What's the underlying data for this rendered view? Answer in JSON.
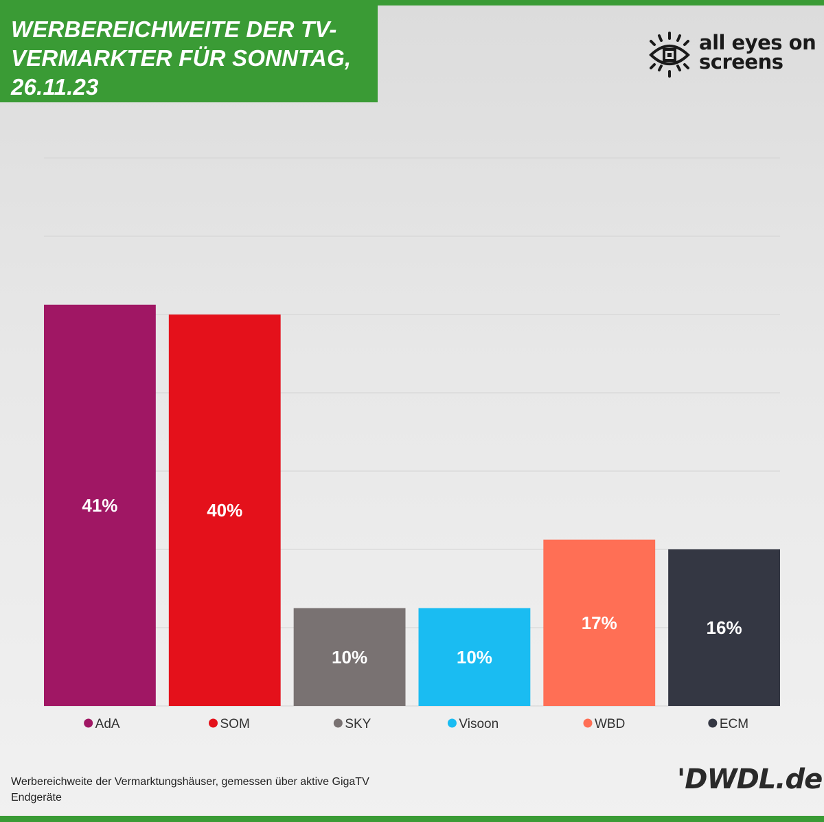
{
  "header": {
    "title": "WERBEREICHWEITE DER TV-VERMARKTER FÜR SONNTAG, 26.11.23",
    "title_lines": [
      "WERBEREICHWEITE DER TV-",
      "VERMARKTER FÜR SONNTAG,",
      "26.11.23"
    ]
  },
  "brand": {
    "line1": "all eyes on",
    "line2": "screens"
  },
  "chart_data": {
    "type": "bar",
    "title": "WERBEREICHWEITE DER TV-VERMARKTER FÜR SONNTAG, 26.11.23",
    "categories": [
      "AdA",
      "SOM",
      "SKY",
      "Visoon",
      "WBD",
      "ECM"
    ],
    "values": [
      41,
      40,
      10,
      10,
      17,
      16
    ],
    "labels": [
      "41%",
      "40%",
      "10%",
      "10%",
      "17%",
      "16%"
    ],
    "colors": [
      "#a01764",
      "#e4111b",
      "#797272",
      "#1abcf2",
      "#ff6f55",
      "#343743"
    ],
    "label_colors": [
      "#ffffff",
      "#ffffff",
      "#ffffff",
      "#ffffff",
      "#ffffff",
      "#ffffff"
    ],
    "ylim": [
      0,
      56
    ],
    "grid": true,
    "legend_position": "bottom",
    "xlabel": "",
    "ylabel": ""
  },
  "footer": {
    "note": "Werbereichweite der Vermarktungshäuser, gemessen über aktive GigaTV Endgeräte",
    "source_logo": "'DWDL.de"
  }
}
